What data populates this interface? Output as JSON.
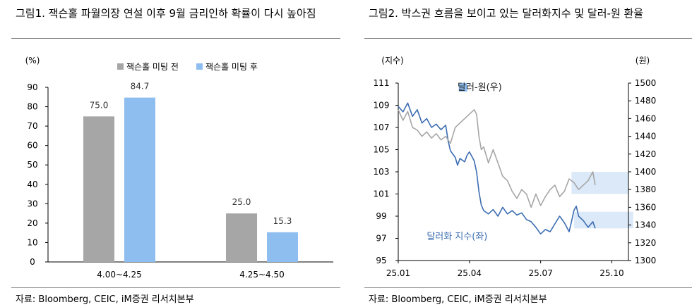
{
  "left": {
    "title": "그림1.  잭슨홀 파월의장 연설 이후 9월 금리인하 확률이 다시 높아짐",
    "source": "자료: Bloomberg, CEIC, iM증권 리서치본부"
  },
  "right": {
    "title": "그림2.  박스권 흐름을 보이고 있는 달러화지수 및 달러-원 환율",
    "source": "자료: Bloomberg, CEIC, iM증권 리서치본부"
  },
  "colors": {
    "before_bar": "#a6a6a6",
    "after_bar": "#8ebdf0",
    "dxy_line": "#3c6db2",
    "krw_line": "#a6a6a6",
    "box_fill": "#dbe9f8"
  },
  "chart_data": [
    {
      "type": "bar",
      "title": "",
      "ylabel": "(%)",
      "ylim": [
        0,
        90
      ],
      "yticks": [
        "0",
        "10",
        "20",
        "30",
        "40",
        "50",
        "60",
        "70",
        "80",
        "90"
      ],
      "categories": [
        "4.00~4.25",
        "4.25~4.50"
      ],
      "series": [
        {
          "name": "잭슨홀 미팅 전",
          "values": [
            75.0,
            25.0
          ],
          "labels": [
            "75.0",
            "25.0"
          ]
        },
        {
          "name": "잭슨홀 미팅 후",
          "values": [
            84.7,
            15.3
          ],
          "labels": [
            "84.7",
            "15.3"
          ]
        }
      ],
      "legend": "top-center",
      "grid": false
    },
    {
      "type": "line",
      "title": "",
      "ylabel_left": "(지수)",
      "ylabel_right": "(원)",
      "ylim_left": [
        95,
        111
      ],
      "ylim_right": [
        1300,
        1500
      ],
      "yticks_left": [
        "95",
        "97",
        "99",
        "101",
        "103",
        "105",
        "107",
        "109",
        "111"
      ],
      "yticks_right": [
        "1300",
        "1320",
        "1340",
        "1360",
        "1380",
        "1400",
        "1420",
        "1440",
        "1460",
        "1480",
        "1500"
      ],
      "xticks": [
        "25.01",
        "25.04",
        "25.07",
        "25.10"
      ],
      "x_positions": [
        0,
        3,
        6,
        9
      ],
      "xlim": [
        0,
        9.7
      ],
      "series": [
        {
          "name": "달러화 지수(좌)",
          "axis": "left",
          "label": "달러화 지수(좌)",
          "x": [
            0,
            0.2,
            0.4,
            0.6,
            0.8,
            1.0,
            1.2,
            1.4,
            1.6,
            1.8,
            2.0,
            2.1,
            2.2,
            2.4,
            2.5,
            2.6,
            2.8,
            2.9,
            3.0,
            3.2,
            3.3,
            3.4,
            3.5,
            3.6,
            3.8,
            4.0,
            4.2,
            4.4,
            4.6,
            4.8,
            5.0,
            5.2,
            5.4,
            5.6,
            5.8,
            6.0,
            6.2,
            6.4,
            6.6,
            6.8,
            7.0,
            7.2,
            7.3,
            7.4,
            7.5,
            7.6,
            7.8,
            8.0,
            8.2,
            8.3
          ],
          "y": [
            108.9,
            108.4,
            109.2,
            108.0,
            108.6,
            107.4,
            107.8,
            107.0,
            107.3,
            106.8,
            107.2,
            105.8,
            104.9,
            104.3,
            103.6,
            104.2,
            103.9,
            104.5,
            104.8,
            104.0,
            103.0,
            101.2,
            100.0,
            99.5,
            99.2,
            99.6,
            99.0,
            99.8,
            99.2,
            99.5,
            99.1,
            99.3,
            98.7,
            98.5,
            98.0,
            97.4,
            97.8,
            97.6,
            98.3,
            99.0,
            98.4,
            97.6,
            98.5,
            99.5,
            99.9,
            99.0,
            98.6,
            98.0,
            98.5,
            97.9
          ]
        },
        {
          "name": "달러-원(우)",
          "axis": "right",
          "label": "달러-원(우)",
          "x": [
            0,
            0.2,
            0.4,
            0.6,
            0.8,
            1.0,
            1.2,
            1.4,
            1.6,
            1.8,
            2.0,
            2.2,
            2.4,
            2.6,
            2.8,
            3.0,
            3.2,
            3.3,
            3.4,
            3.5,
            3.6,
            3.8,
            4.0,
            4.2,
            4.4,
            4.6,
            4.8,
            5.0,
            5.2,
            5.4,
            5.6,
            5.8,
            6.0,
            6.2,
            6.4,
            6.6,
            6.8,
            7.0,
            7.2,
            7.4,
            7.6,
            7.8,
            8.0,
            8.2,
            8.3
          ],
          "y": [
            1470,
            1458,
            1468,
            1450,
            1447,
            1440,
            1445,
            1438,
            1443,
            1436,
            1440,
            1432,
            1450,
            1455,
            1460,
            1465,
            1470,
            1465,
            1440,
            1425,
            1428,
            1410,
            1425,
            1410,
            1395,
            1390,
            1378,
            1370,
            1380,
            1375,
            1360,
            1375,
            1362,
            1372,
            1380,
            1385,
            1372,
            1378,
            1392,
            1388,
            1380,
            1385,
            1390,
            1400,
            1385
          ]
        }
      ],
      "annotations": [
        {
          "text": "달러-원(우)",
          "target": "krw"
        },
        {
          "text": "달러화 지수(좌)",
          "target": "dxy"
        }
      ],
      "boxes": [
        {
          "x0": 7.3,
          "x1": 9.7,
          "axis": "right",
          "y0": 1375,
          "y1": 1400
        },
        {
          "x0": 7.4,
          "x1": 9.9,
          "axis": "left",
          "y0": 97.9,
          "y1": 99.4
        }
      ],
      "grid": false
    }
  ]
}
